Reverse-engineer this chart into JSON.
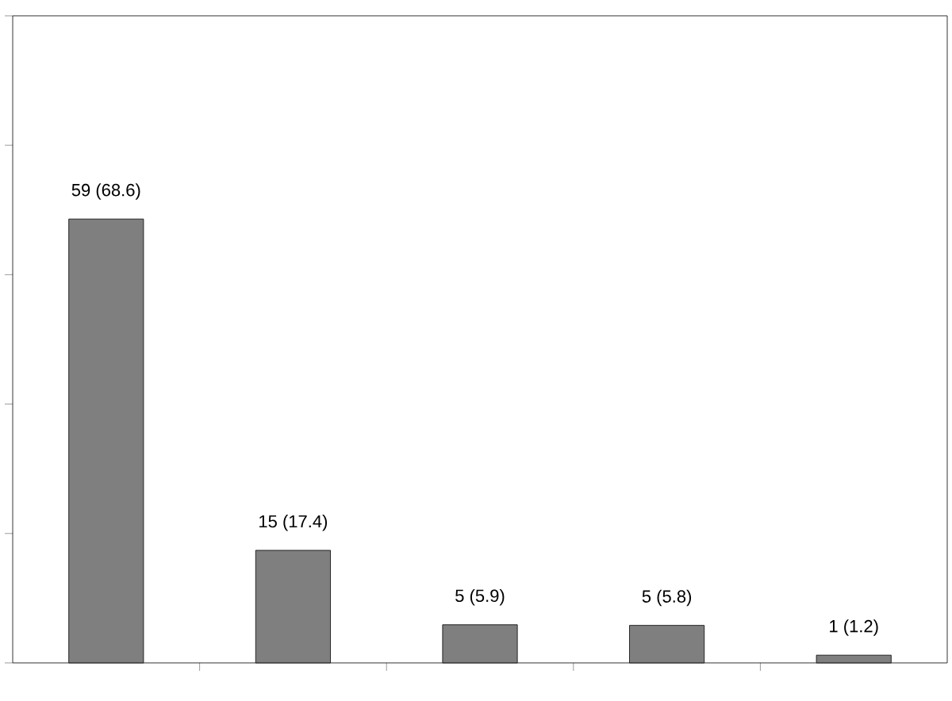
{
  "chart_data": {
    "type": "bar",
    "categories": [
      null,
      null,
      null,
      null,
      null
    ],
    "values": [
      68.6,
      17.4,
      5.9,
      5.8,
      1.2
    ],
    "value_labels": [
      "59 (68.6)",
      "15 (17.4)",
      "5 (5.9)",
      "5 (5.8)",
      "1 (1.2)"
    ],
    "color": "#7f7f7f",
    "ylim": [
      0,
      100
    ],
    "yticks": [
      {
        "value": 0,
        "label": null
      },
      {
        "value": 20,
        "label": null
      },
      {
        "value": 40,
        "label": null
      },
      {
        "value": 60,
        "label": null
      },
      {
        "value": 80,
        "label": null
      },
      {
        "value": 100,
        "label": null
      }
    ],
    "grid": false
  }
}
